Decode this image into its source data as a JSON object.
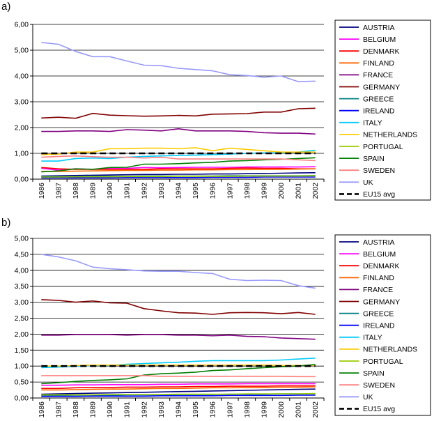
{
  "countries": [
    {
      "key": "AUSTRIA",
      "label": "AUSTRIA",
      "color": "#000080"
    },
    {
      "key": "BELGIUM",
      "label": "BELGIUM",
      "color": "#ff00ff"
    },
    {
      "key": "DENMARK",
      "label": "DENMARK",
      "color": "#ff0000"
    },
    {
      "key": "FINLAND",
      "label": "FINLAND",
      "color": "#ff6600"
    },
    {
      "key": "FRANCE",
      "label": "FRANCE",
      "color": "#800080"
    },
    {
      "key": "GERMANY",
      "label": "GERMANY",
      "color": "#800000"
    },
    {
      "key": "GREECE",
      "label": "GREECE",
      "color": "#008080"
    },
    {
      "key": "IRELAND",
      "label": "IRELAND",
      "color": "#0000ff"
    },
    {
      "key": "ITALY",
      "label": "ITALY",
      "color": "#00ccff"
    },
    {
      "key": "NETHERLANDS",
      "label": "NETHERLANDS",
      "color": "#ffcc00"
    },
    {
      "key": "PORTUGAL",
      "label": "PORTUGAL",
      "color": "#99cc00"
    },
    {
      "key": "SPAIN",
      "label": "SPAIN",
      "color": "#008000"
    },
    {
      "key": "SWEDEN",
      "label": "SWEDEN",
      "color": "#ff8080"
    },
    {
      "key": "UK",
      "label": "UK",
      "color": "#9999ff"
    },
    {
      "key": "EU15",
      "label": "EU15 avg",
      "color": "#000000",
      "dashed": true
    }
  ],
  "chart_data": [
    {
      "type": "line",
      "panel_label": "a)",
      "title": "",
      "xlabel": "",
      "ylabel": "",
      "ylim": [
        0,
        6
      ],
      "y_ticks": [
        "0,00",
        "1,00",
        "2,00",
        "3,00",
        "4,00",
        "5,00",
        "6,00"
      ],
      "categories": [
        "1986",
        "1987",
        "1988",
        "1989",
        "1990",
        "1991",
        "1992",
        "1993",
        "1994",
        "1995",
        "1996",
        "1997",
        "1998",
        "1999",
        "2000",
        "2001",
        "2002"
      ],
      "legend_position": "right",
      "series": [
        {
          "name": "AUSTRIA",
          "values": [
            0.12,
            0.13,
            0.14,
            0.15,
            0.16,
            0.17,
            0.18,
            0.18,
            0.19,
            0.19,
            0.2,
            0.2,
            0.21,
            0.22,
            0.23,
            0.24,
            0.25
          ]
        },
        {
          "name": "BELGIUM",
          "values": [
            0.42,
            0.35,
            0.4,
            0.38,
            0.42,
            0.42,
            0.45,
            0.44,
            0.45,
            0.46,
            0.46,
            0.46,
            0.47,
            0.47,
            0.47,
            0.47,
            0.48
          ]
        },
        {
          "name": "DENMARK",
          "values": [
            0.45,
            0.4,
            0.38,
            0.38,
            0.38,
            0.38,
            0.38,
            0.4,
            0.4,
            0.4,
            0.4,
            0.42,
            0.43,
            0.42,
            0.42,
            0.4,
            0.4
          ]
        },
        {
          "name": "FINLAND",
          "values": [
            0.3,
            0.3,
            0.31,
            0.32,
            0.33,
            0.34,
            0.34,
            0.35,
            0.35,
            0.36,
            0.36,
            0.37,
            0.37,
            0.38,
            0.38,
            0.39,
            0.4
          ]
        },
        {
          "name": "FRANCE",
          "values": [
            1.85,
            1.85,
            1.87,
            1.87,
            1.85,
            1.92,
            1.9,
            1.87,
            1.95,
            1.87,
            1.87,
            1.87,
            1.85,
            1.8,
            1.78,
            1.78,
            1.75
          ]
        },
        {
          "name": "GERMANY",
          "values": [
            2.37,
            2.4,
            2.36,
            2.55,
            2.48,
            2.46,
            2.44,
            2.45,
            2.47,
            2.45,
            2.52,
            2.53,
            2.54,
            2.6,
            2.6,
            2.73,
            2.75
          ]
        },
        {
          "name": "GREECE",
          "values": [
            0.1,
            0.1,
            0.1,
            0.11,
            0.11,
            0.11,
            0.12,
            0.12,
            0.12,
            0.12,
            0.12,
            0.13,
            0.13,
            0.13,
            0.13,
            0.13,
            0.14
          ]
        },
        {
          "name": "IRELAND",
          "values": [
            0.05,
            0.05,
            0.05,
            0.05,
            0.05,
            0.06,
            0.06,
            0.06,
            0.06,
            0.06,
            0.07,
            0.07,
            0.07,
            0.08,
            0.08,
            0.08,
            0.08
          ]
        },
        {
          "name": "ITALY",
          "values": [
            0.7,
            0.7,
            0.8,
            0.82,
            0.8,
            0.85,
            0.88,
            0.9,
            0.92,
            0.93,
            0.95,
            0.97,
            1.0,
            1.02,
            1.02,
            1.05,
            1.12
          ]
        },
        {
          "name": "NETHERLANDS",
          "values": [
            0.95,
            0.97,
            1.05,
            1.05,
            1.18,
            1.18,
            1.2,
            1.2,
            1.18,
            1.22,
            1.1,
            1.2,
            1.15,
            1.1,
            1.05,
            1.05,
            1.05
          ]
        },
        {
          "name": "PORTUGAL",
          "values": [
            0.08,
            0.08,
            0.09,
            0.09,
            0.09,
            0.1,
            0.1,
            0.1,
            0.11,
            0.11,
            0.11,
            0.11,
            0.12,
            0.12,
            0.12,
            0.12,
            0.13
          ]
        },
        {
          "name": "SPAIN",
          "values": [
            0.28,
            0.32,
            0.4,
            0.38,
            0.45,
            0.46,
            0.58,
            0.58,
            0.6,
            0.63,
            0.65,
            0.7,
            0.72,
            0.75,
            0.77,
            0.8,
            0.83
          ]
        },
        {
          "name": "SWEDEN",
          "values": [
            0.85,
            0.88,
            0.9,
            0.87,
            0.85,
            0.85,
            0.82,
            0.85,
            0.78,
            0.78,
            0.78,
            0.78,
            0.78,
            0.78,
            0.78,
            0.75,
            0.72
          ]
        },
        {
          "name": "UK",
          "values": [
            5.3,
            5.23,
            4.95,
            4.75,
            4.75,
            4.58,
            4.42,
            4.4,
            4.3,
            4.25,
            4.2,
            4.05,
            4.02,
            3.95,
            4.0,
            3.78,
            3.8
          ]
        },
        {
          "name": "EU15 avg",
          "values": [
            1,
            1,
            1,
            1,
            1,
            1,
            1,
            1,
            1,
            1,
            1,
            1,
            1,
            1,
            1,
            1,
            1
          ]
        }
      ]
    },
    {
      "type": "line",
      "panel_label": "b)",
      "title": "",
      "xlabel": "",
      "ylabel": "",
      "ylim": [
        0,
        5
      ],
      "y_ticks": [
        "0,00",
        "0,50",
        "1,00",
        "1,50",
        "2,00",
        "2,50",
        "3,00",
        "3,50",
        "4,00",
        "4,50",
        "5,00"
      ],
      "categories": [
        "1986",
        "1987",
        "1988",
        "1989",
        "1990",
        "1991",
        "1992",
        "1993",
        "1994",
        "1995",
        "1996",
        "1997",
        "1998",
        "1999",
        "2000",
        "2001",
        "2002"
      ],
      "legend_position": "right",
      "series": [
        {
          "name": "AUSTRIA",
          "values": [
            0.12,
            0.13,
            0.14,
            0.15,
            0.16,
            0.17,
            0.18,
            0.19,
            0.2,
            0.21,
            0.22,
            0.23,
            0.24,
            0.25,
            0.26,
            0.27,
            0.28
          ]
        },
        {
          "name": "BELGIUM",
          "values": [
            0.4,
            0.4,
            0.41,
            0.41,
            0.42,
            0.42,
            0.42,
            0.43,
            0.43,
            0.44,
            0.44,
            0.44,
            0.45,
            0.45,
            0.45,
            0.45,
            0.45
          ]
        },
        {
          "name": "DENMARK",
          "values": [
            0.3,
            0.3,
            0.32,
            0.33,
            0.33,
            0.34,
            0.34,
            0.35,
            0.35,
            0.36,
            0.36,
            0.37,
            0.37,
            0.37,
            0.38,
            0.38,
            0.38
          ]
        },
        {
          "name": "FINLAND",
          "values": [
            0.25,
            0.25,
            0.26,
            0.27,
            0.28,
            0.28,
            0.29,
            0.3,
            0.3,
            0.31,
            0.32,
            0.32,
            0.33,
            0.33,
            0.34,
            0.34,
            0.35
          ]
        },
        {
          "name": "FRANCE",
          "values": [
            1.97,
            1.97,
            1.99,
            1.99,
            1.99,
            1.97,
            1.99,
            1.99,
            1.97,
            1.97,
            1.95,
            1.97,
            1.93,
            1.92,
            1.88,
            1.86,
            1.84
          ]
        },
        {
          "name": "GERMANY",
          "values": [
            3.08,
            3.06,
            3.0,
            3.04,
            2.98,
            2.97,
            2.8,
            2.73,
            2.67,
            2.66,
            2.62,
            2.67,
            2.68,
            2.67,
            2.64,
            2.68,
            2.62
          ]
        },
        {
          "name": "GREECE",
          "values": [
            0.08,
            0.08,
            0.09,
            0.09,
            0.09,
            0.1,
            0.1,
            0.1,
            0.11,
            0.11,
            0.11,
            0.12,
            0.12,
            0.12,
            0.13,
            0.13,
            0.13
          ]
        },
        {
          "name": "IRELAND",
          "values": [
            0.05,
            0.05,
            0.05,
            0.06,
            0.06,
            0.06,
            0.06,
            0.07,
            0.07,
            0.07,
            0.07,
            0.08,
            0.08,
            0.08,
            0.08,
            0.09,
            0.09
          ]
        },
        {
          "name": "ITALY",
          "values": [
            0.95,
            0.97,
            0.99,
            1.02,
            1.02,
            1.06,
            1.08,
            1.1,
            1.12,
            1.15,
            1.17,
            1.17,
            1.17,
            1.17,
            1.19,
            1.22,
            1.25
          ]
        },
        {
          "name": "NETHERLANDS",
          "values": [
            1.0,
            1.0,
            1.02,
            1.03,
            1.03,
            1.03,
            1.03,
            1.03,
            1.03,
            1.03,
            1.03,
            1.03,
            1.03,
            1.03,
            1.02,
            1.02,
            1.02
          ]
        },
        {
          "name": "PORTUGAL",
          "values": [
            0.1,
            0.1,
            0.1,
            0.1,
            0.11,
            0.11,
            0.11,
            0.11,
            0.12,
            0.12,
            0.12,
            0.12,
            0.13,
            0.13,
            0.13,
            0.13,
            0.14
          ]
        },
        {
          "name": "SPAIN",
          "values": [
            0.45,
            0.48,
            0.52,
            0.55,
            0.57,
            0.6,
            0.72,
            0.76,
            0.78,
            0.81,
            0.86,
            0.88,
            0.92,
            0.95,
            0.98,
            1.0,
            1.05
          ]
        },
        {
          "name": "SWEDEN",
          "values": [
            0.7,
            0.7,
            0.7,
            0.7,
            0.7,
            0.7,
            0.7,
            0.68,
            0.68,
            0.68,
            0.68,
            0.68,
            0.68,
            0.68,
            0.68,
            0.67,
            0.67
          ]
        },
        {
          "name": "UK",
          "values": [
            4.5,
            4.42,
            4.3,
            4.1,
            4.05,
            4.02,
            3.98,
            3.97,
            3.97,
            3.93,
            3.9,
            3.72,
            3.68,
            3.69,
            3.68,
            3.52,
            3.44
          ]
        },
        {
          "name": "EU15 avg",
          "values": [
            1,
            1,
            1,
            1,
            1,
            1,
            1,
            1,
            1,
            1,
            1,
            1,
            1,
            1,
            1,
            1,
            1
          ]
        }
      ]
    }
  ]
}
